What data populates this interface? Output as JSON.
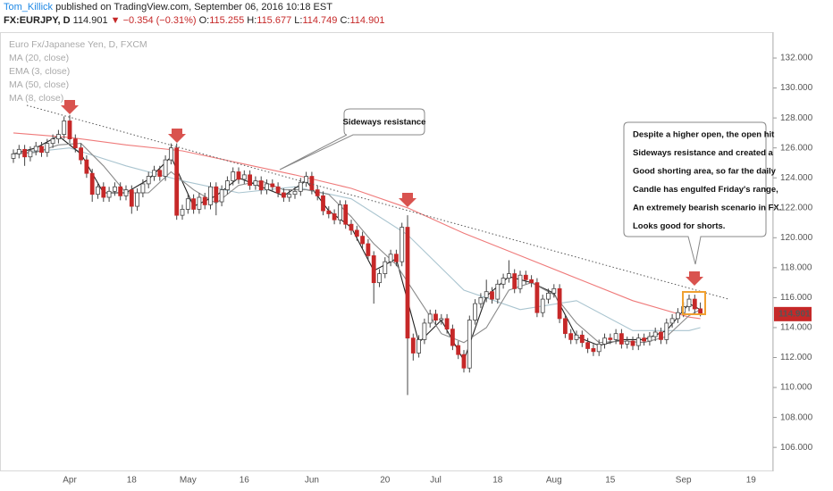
{
  "header": {
    "author": "Tom_Killick",
    "published": "published on TradingView.com, September 06, 2016 10:18 EST",
    "symbol": "FX:EURJPY, D",
    "direction": "▼",
    "change": "−0.354 (−0.31%)",
    "ohlc_labels": [
      "O:",
      "H:",
      "L:",
      "C:"
    ]
  },
  "chart_data": {
    "type": "candlestick",
    "title": "Euro Fx/Japanese Yen, D, FXCM",
    "categories": [
      null,
      null,
      null,
      null,
      null,
      null,
      null,
      null,
      null,
      null,
      "Apr",
      null,
      null,
      null,
      null,
      null,
      null,
      null,
      null,
      null,
      null,
      "18",
      null,
      null,
      null,
      null,
      null,
      null,
      null,
      null,
      null,
      "May",
      null,
      null,
      null,
      null,
      null,
      null,
      null,
      null,
      null,
      "16",
      null,
      null,
      null,
      null,
      null,
      null,
      null,
      null,
      null,
      null,
      null,
      "Jun",
      null,
      null,
      null,
      null,
      null,
      null,
      null,
      null,
      null,
      null,
      null,
      null,
      "20",
      null,
      null,
      null,
      null,
      null,
      null,
      null,
      null,
      "Jul",
      null,
      null,
      null,
      null,
      null,
      null,
      null,
      null,
      null,
      null,
      "18",
      null,
      null,
      null,
      null,
      null,
      null,
      null,
      null,
      null,
      "Aug",
      null,
      null,
      null,
      null,
      null,
      null,
      null,
      null,
      null,
      "15",
      null,
      null,
      null,
      null,
      null,
      null,
      null,
      null,
      null,
      null,
      null,
      null,
      "Sep",
      null,
      null,
      null,
      null,
      null,
      null,
      null,
      null,
      null,
      null,
      null,
      "19"
    ],
    "open": [
      125.3,
      125.6,
      125.9,
      125.4,
      125.8,
      126.1,
      125.7,
      126.3,
      126.6,
      126.9,
      127.8,
      126.6,
      126.0,
      125.2,
      124.3,
      122.9,
      123.4,
      122.7,
      123.1,
      123.4,
      122.8,
      123.2,
      122.1,
      123.0,
      123.6,
      124.1,
      124.5,
      124.1,
      125.2,
      126.0,
      121.5,
      121.9,
      122.6,
      121.9,
      122.7,
      122.2,
      123.4,
      122.4,
      123.2,
      123.8,
      124.4,
      123.9,
      124.2,
      123.5,
      123.8,
      123.2,
      123.6,
      123.4,
      123.0,
      122.7,
      122.9,
      123.1,
      123.7,
      124.1,
      123.2,
      122.8,
      121.8,
      121.6,
      121.2,
      122.2,
      120.9,
      120.5,
      120.1,
      119.6,
      118.8,
      117.0,
      117.6,
      118.4,
      118.9,
      118.4,
      120.7,
      113.3,
      112.3,
      113.2,
      114.3,
      114.9,
      114.5,
      114.6,
      113.9,
      112.8,
      112.2,
      111.3,
      114.5,
      115.6,
      116.0,
      116.4,
      115.9,
      116.9,
      117.3,
      117.6,
      116.6,
      117.5,
      117.2,
      117.0,
      115.0,
      115.9,
      116.3,
      116.6,
      114.6,
      113.6,
      113.2,
      113.5,
      113.0,
      112.6,
      112.4,
      112.9,
      113.3,
      113.2,
      113.6,
      112.9,
      113.1,
      112.8,
      113.3,
      113.1,
      113.4,
      113.7,
      113.2,
      114.3,
      114.6,
      115.0,
      115.4,
      115.9,
      115.255,
      null,
      null,
      null,
      null,
      null,
      null,
      null,
      null,
      null
    ],
    "high": [
      125.9,
      126.2,
      126.2,
      126.1,
      126.4,
      126.4,
      126.6,
      126.9,
      127.2,
      128.1,
      128.2,
      126.9,
      126.3,
      125.5,
      124.6,
      123.7,
      123.7,
      123.4,
      123.7,
      123.7,
      123.5,
      123.5,
      123.3,
      123.9,
      124.4,
      124.8,
      124.8,
      125.5,
      126.3,
      126.3,
      122.2,
      122.9,
      122.9,
      123.0,
      123.0,
      123.7,
      123.7,
      123.5,
      124.1,
      124.7,
      124.7,
      124.5,
      124.5,
      124.1,
      124.1,
      123.9,
      123.9,
      123.7,
      123.3,
      123.2,
      123.4,
      124.0,
      124.4,
      124.4,
      123.5,
      123.1,
      122.1,
      121.9,
      122.5,
      122.5,
      121.2,
      120.8,
      120.4,
      119.9,
      119.1,
      117.9,
      118.7,
      119.2,
      119.2,
      121.0,
      121.5,
      113.6,
      113.5,
      114.6,
      115.2,
      115.2,
      114.9,
      114.9,
      114.2,
      113.1,
      112.5,
      114.8,
      115.9,
      116.3,
      117.2,
      116.7,
      117.2,
      117.6,
      118.5,
      117.9,
      117.8,
      117.8,
      117.5,
      117.3,
      116.2,
      116.6,
      116.9,
      116.9,
      114.9,
      113.9,
      113.8,
      113.8,
      113.3,
      112.9,
      113.2,
      113.6,
      113.6,
      113.9,
      113.9,
      113.4,
      113.4,
      113.6,
      113.6,
      113.7,
      114.0,
      114.0,
      114.6,
      114.9,
      115.3,
      115.7,
      116.2,
      116.2,
      115.677,
      null,
      null,
      null,
      null,
      null,
      null,
      null,
      null,
      null
    ],
    "low": [
      125.0,
      125.3,
      124.8,
      125.1,
      125.5,
      125.4,
      125.4,
      126.0,
      126.3,
      126.6,
      126.3,
      125.7,
      124.9,
      124.0,
      122.4,
      122.6,
      122.4,
      122.4,
      122.8,
      122.5,
      122.5,
      121.6,
      121.8,
      122.7,
      123.3,
      123.8,
      123.8,
      123.8,
      124.9,
      121.2,
      121.2,
      121.6,
      121.6,
      121.6,
      121.9,
      121.9,
      121.5,
      122.1,
      122.9,
      123.5,
      123.6,
      123.6,
      123.2,
      123.2,
      122.9,
      122.9,
      123.1,
      122.7,
      122.4,
      122.4,
      122.6,
      122.8,
      123.4,
      122.9,
      122.5,
      121.5,
      121.3,
      120.9,
      120.9,
      120.6,
      120.2,
      119.8,
      119.3,
      118.5,
      115.6,
      116.7,
      117.3,
      118.1,
      118.1,
      118.1,
      109.5,
      111.8,
      112.0,
      112.9,
      114.0,
      114.2,
      114.2,
      113.6,
      112.5,
      111.9,
      111.0,
      111.0,
      114.2,
      115.3,
      115.7,
      115.6,
      115.6,
      116.6,
      117.0,
      116.3,
      116.3,
      116.9,
      116.7,
      114.7,
      114.7,
      115.6,
      116.0,
      114.3,
      113.3,
      112.9,
      112.9,
      112.7,
      112.3,
      112.1,
      112.1,
      112.6,
      112.9,
      112.9,
      112.6,
      112.6,
      112.5,
      112.5,
      112.8,
      112.8,
      113.1,
      112.9,
      112.9,
      114.0,
      114.3,
      114.7,
      115.1,
      114.95,
      114.749,
      null,
      null,
      null,
      null,
      null,
      null,
      null,
      null,
      null
    ],
    "close": [
      125.6,
      125.9,
      125.4,
      125.8,
      126.1,
      125.7,
      126.3,
      126.6,
      126.9,
      127.8,
      126.6,
      126.0,
      125.2,
      124.3,
      122.9,
      123.4,
      122.7,
      123.1,
      123.4,
      122.8,
      123.2,
      122.1,
      123.0,
      123.6,
      124.1,
      124.5,
      124.1,
      125.2,
      126.0,
      121.5,
      121.9,
      122.6,
      121.9,
      122.7,
      122.2,
      123.4,
      122.4,
      123.2,
      123.8,
      124.4,
      123.9,
      124.2,
      123.5,
      123.8,
      123.2,
      123.6,
      123.4,
      123.0,
      122.7,
      122.9,
      123.1,
      123.7,
      124.1,
      123.2,
      122.8,
      121.8,
      121.6,
      121.2,
      122.2,
      120.9,
      120.5,
      120.1,
      119.6,
      118.8,
      117.0,
      117.6,
      118.4,
      118.9,
      118.4,
      120.7,
      113.3,
      112.3,
      113.2,
      114.3,
      114.9,
      114.5,
      114.6,
      113.9,
      112.8,
      112.2,
      111.3,
      114.5,
      115.6,
      116.0,
      116.4,
      115.9,
      116.9,
      117.3,
      117.6,
      116.6,
      117.5,
      117.2,
      117.0,
      115.0,
      115.9,
      116.3,
      116.6,
      114.6,
      113.6,
      113.2,
      113.5,
      113.0,
      112.6,
      112.4,
      112.9,
      113.3,
      113.2,
      113.6,
      112.9,
      113.1,
      112.8,
      113.3,
      113.1,
      113.4,
      113.7,
      113.2,
      114.3,
      114.6,
      115.0,
      115.4,
      115.9,
      115.25,
      114.901,
      null,
      null,
      null,
      null,
      null,
      null,
      null,
      null,
      null
    ],
    "up_color": "#ffffff",
    "down_color": "#c62828",
    "wick_color": "#444444",
    "series": [
      {
        "name": "MA (20, close)",
        "color": "#a9c4cf",
        "x": [
          0,
          10,
          20,
          30,
          40,
          50,
          60,
          70,
          80,
          90,
          100,
          110,
          120,
          122
        ],
        "values": [
          125.6,
          126.0,
          124.8,
          123.8,
          123.0,
          123.4,
          122.6,
          120.2,
          116.5,
          115.2,
          115.8,
          113.8,
          113.8,
          114.0
        ]
      },
      {
        "name": "EMA (3, close)",
        "color": "#222222",
        "x": [
          0,
          4,
          8,
          12,
          16,
          20,
          24,
          28,
          32,
          36,
          40,
          44,
          48,
          52,
          56,
          60,
          64,
          68,
          72,
          76,
          80,
          84,
          88,
          92,
          96,
          100,
          104,
          108,
          112,
          116,
          120,
          122
        ],
        "values": [
          125.6,
          126.0,
          126.8,
          125.6,
          123.0,
          123.0,
          123.9,
          125.4,
          122.1,
          122.8,
          124.0,
          123.4,
          122.8,
          123.8,
          121.8,
          120.7,
          117.8,
          118.6,
          113.0,
          114.5,
          111.8,
          116.1,
          117.4,
          117.0,
          116.3,
          113.4,
          112.8,
          113.2,
          113.2,
          113.8,
          115.6,
          115.2
        ]
      },
      {
        "name": "MA (50, close)",
        "color": "#ef7a7a",
        "x": [
          0,
          10,
          20,
          30,
          40,
          50,
          60,
          70,
          80,
          90,
          100,
          110,
          120,
          122
        ],
        "values": [
          127.0,
          126.7,
          126.2,
          125.8,
          125.0,
          124.2,
          123.3,
          122.0,
          120.3,
          118.8,
          117.3,
          115.8,
          114.7,
          114.6
        ]
      },
      {
        "name": "MA (8, close)",
        "color": "#8a8a8a",
        "x": [
          0,
          4,
          8,
          12,
          16,
          20,
          24,
          28,
          32,
          36,
          40,
          44,
          48,
          52,
          56,
          60,
          64,
          68,
          72,
          76,
          80,
          84,
          88,
          92,
          96,
          100,
          104,
          108,
          112,
          116,
          120,
          122
        ],
        "values": [
          125.6,
          125.7,
          126.2,
          126.3,
          124.8,
          123.0,
          123.0,
          124.4,
          123.2,
          122.3,
          123.5,
          123.8,
          123.2,
          123.2,
          122.9,
          121.4,
          119.6,
          118.2,
          115.9,
          113.6,
          113.0,
          114.0,
          116.5,
          117.0,
          116.2,
          114.3,
          113.0,
          113.1,
          113.0,
          113.4,
          114.8,
          115.2
        ]
      }
    ],
    "ylim": [
      104.4,
      133.73
    ],
    "yticks": [
      {
        "value": 106,
        "label": "106.000"
      },
      {
        "value": 108,
        "label": "108.000"
      },
      {
        "value": 110,
        "label": "110.000"
      },
      {
        "value": 112,
        "label": "112.000"
      },
      {
        "value": 114,
        "label": "114.000"
      },
      {
        "value": 116,
        "label": "116.000"
      },
      {
        "value": 118,
        "label": "118.000"
      },
      {
        "value": 120,
        "label": "120.000"
      },
      {
        "value": 122,
        "label": "122.000"
      },
      {
        "value": 124,
        "label": "124.000"
      },
      {
        "value": 126,
        "label": "126.000"
      },
      {
        "value": 128,
        "label": "128.000"
      },
      {
        "value": 130,
        "label": "130.000"
      },
      {
        "value": 132,
        "label": "132.000"
      }
    ],
    "annotations": {
      "callout": "Sideways resistance",
      "note": [
        "Despite a higher open, the open hit",
        "Sideways resistance and created a",
        "Good shorting area, so far the daily",
        "Candle has engulfed Friday's range,",
        "An extremely bearish scenario in FX.",
        "Looks good for shorts."
      ]
    }
  }
}
